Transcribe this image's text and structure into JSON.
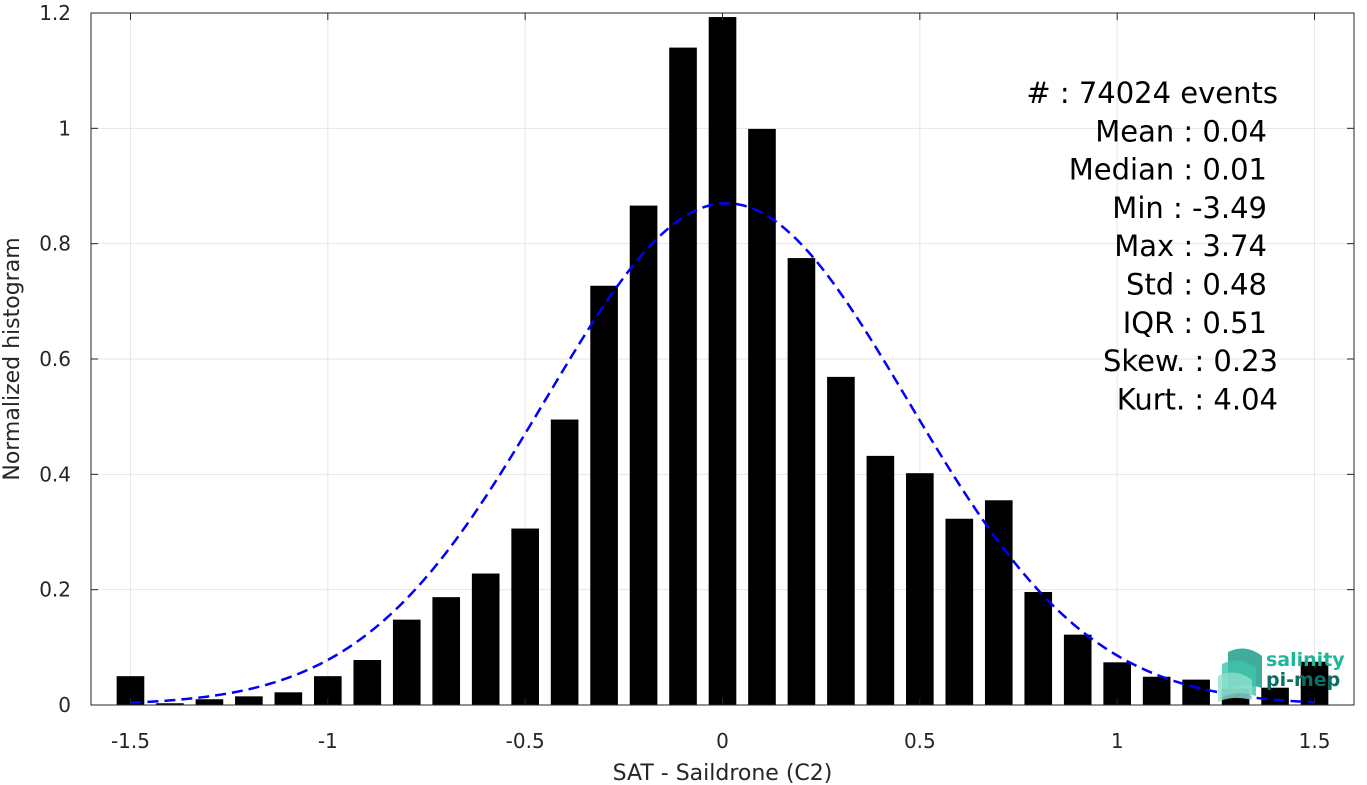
{
  "chart_data": {
    "type": "bar",
    "xlabel": "SAT - Saildrone (C2)",
    "ylabel": "Normalized histogram",
    "xlim": [
      -1.6,
      1.6
    ],
    "ylim": [
      0,
      1.2
    ],
    "grid": true,
    "x": [
      -1.5,
      -1.4,
      -1.3,
      -1.2,
      -1.1,
      -1.0,
      -0.9,
      -0.8,
      -0.7,
      -0.6,
      -0.5,
      -0.4,
      -0.3,
      -0.2,
      -0.1,
      0.0,
      0.1,
      0.2,
      0.3,
      0.4,
      0.5,
      0.6,
      0.7,
      0.8,
      0.9,
      1.0,
      1.1,
      1.2,
      1.3,
      1.4,
      1.5
    ],
    "values": [
      0.05,
      0.003,
      0.01,
      0.015,
      0.022,
      0.05,
      0.078,
      0.148,
      0.187,
      0.228,
      0.306,
      0.495,
      0.727,
      0.866,
      1.14,
      1.193,
      0.999,
      0.775,
      0.569,
      0.432,
      0.402,
      0.323,
      0.355,
      0.196,
      0.122,
      0.074,
      0.049,
      0.044,
      0.028,
      0.03,
      0.075
    ],
    "bar_color": "#000000",
    "fit": {
      "style": "dashed",
      "color": "#0000ff",
      "mean": 0.01,
      "std": 0.46,
      "peak": 0.87
    },
    "xticks": [
      "-1.5",
      "-1",
      "-0.5",
      "0",
      "0.5",
      "1",
      "1.5"
    ],
    "xtick_values": [
      -1.5,
      -1,
      -0.5,
      0,
      0.5,
      1,
      1.5
    ],
    "yticks": [
      "0",
      "0.2",
      "0.4",
      "0.6",
      "0.8",
      "1",
      "1.2"
    ],
    "ytick_values": [
      0,
      0.2,
      0.4,
      0.6,
      0.8,
      1,
      1.2
    ],
    "stats": [
      "#  : 74024 events",
      "Mean : 0.04",
      "Median : 0.01",
      "Min : -3.49",
      "Max : 3.74",
      "Std : 0.48",
      "IQR : 0.51",
      "Skew. : 0.23",
      "Kurt. : 4.04"
    ]
  },
  "logo": {
    "line1": "salinity",
    "line2": "pi-mep",
    "color1": "#1fb59a",
    "color2": "#0b6e62"
  }
}
